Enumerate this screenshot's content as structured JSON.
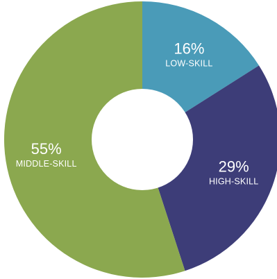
{
  "chart_data": {
    "type": "pie",
    "variant": "donut",
    "slices": [
      {
        "label": "LOW-SKILL",
        "value": 16,
        "display": "16%",
        "color": "#4a9bb8"
      },
      {
        "label": "HIGH-SKILL",
        "value": 29,
        "display": "29%",
        "color": "#3d3d78"
      },
      {
        "label": "MIDDLE-SKILL",
        "value": 55,
        "display": "55%",
        "color": "#8ba84f"
      }
    ],
    "start_direction": "top",
    "order": "clockwise",
    "legend": "none",
    "center_color": "#ffffff"
  }
}
